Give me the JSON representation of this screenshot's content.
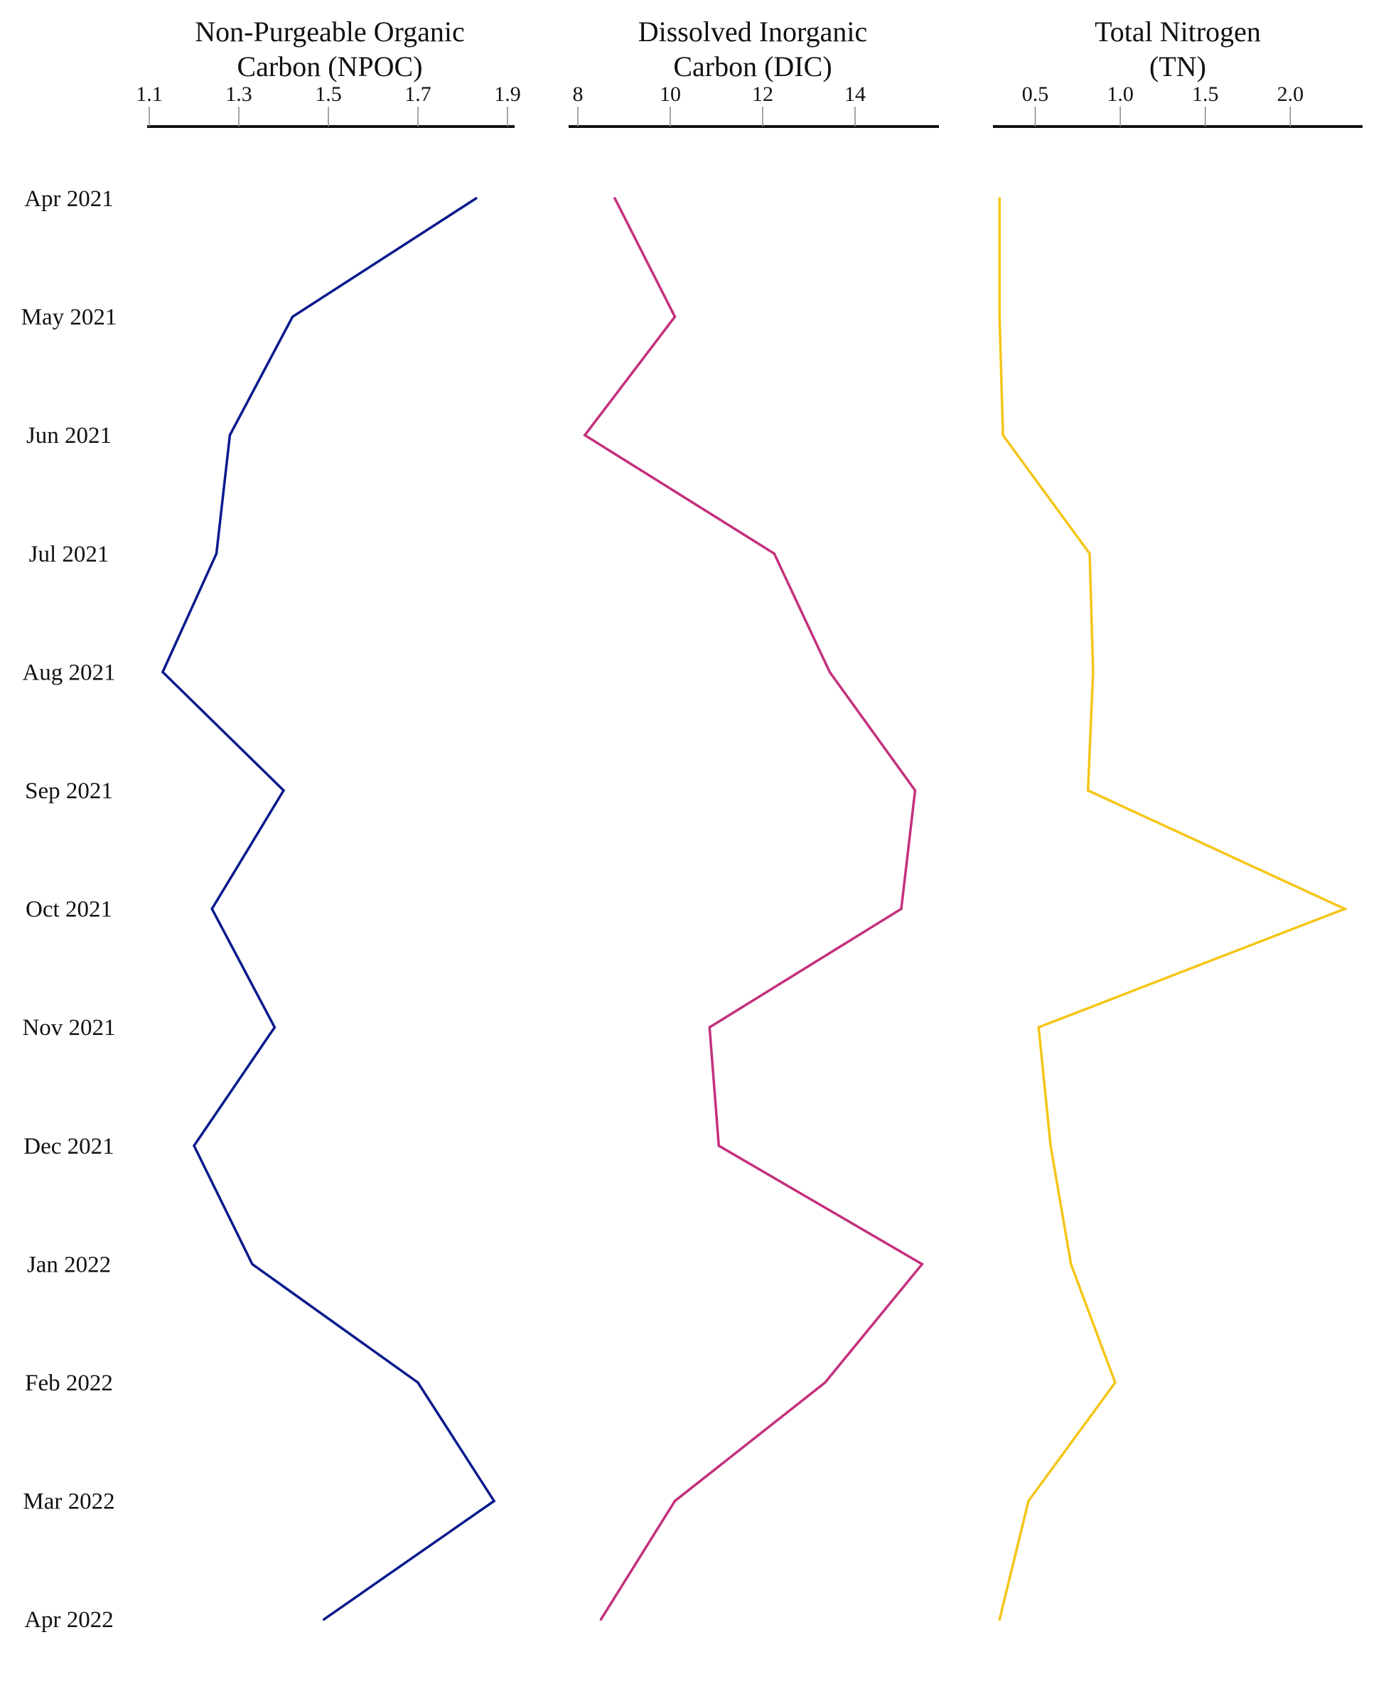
{
  "chart_data": {
    "type": "line",
    "orientation": "vertical-depth-profile",
    "dates": [
      "Apr 2021",
      "May 2021",
      "Jun 2021",
      "Jul 2021",
      "Aug 2021",
      "Sep 2021",
      "Oct 2021",
      "Nov 2021",
      "Dec 2021",
      "Jan 2022",
      "Feb 2022",
      "Mar 2022",
      "Apr 2022"
    ],
    "grid": false,
    "legend": "none",
    "panels": [
      {
        "title_lines": [
          "Non-Purgeable Organic",
          "Carbon (NPOC)"
        ],
        "xlim": [
          1.1,
          1.9
        ],
        "ticks": [
          1.1,
          1.3,
          1.5,
          1.7,
          1.9
        ],
        "tick_labels": [
          "1.1",
          "1.3",
          "1.5",
          "1.7",
          "1.9"
        ],
        "color": "#0a1a8c",
        "values": [
          1.83,
          1.42,
          1.28,
          1.25,
          1.13,
          1.4,
          1.24,
          1.38,
          1.2,
          1.33,
          1.7,
          1.87,
          1.49
        ]
      },
      {
        "title_lines": [
          "Dissolved Inorganic",
          "Carbon (DIC)"
        ],
        "xlim": [
          8,
          16
        ],
        "ticks": [
          8,
          10,
          12,
          14
        ],
        "tick_labels": [
          "8",
          "10",
          "12",
          "14"
        ],
        "color": "#c4307c",
        "values": [
          8.8,
          10.1,
          8.15,
          12.25,
          13.45,
          15.3,
          15.0,
          10.85,
          11.05,
          15.45,
          13.35,
          10.1,
          8.5
        ]
      },
      {
        "title_lines": [
          "Total Nitrogen",
          "(TN)"
        ],
        "xlim": [
          0.18,
          2.4
        ],
        "ticks": [
          0.5,
          1.0,
          1.5,
          2.0
        ],
        "tick_labels": [
          "0.5",
          "1.0",
          "1.5",
          "2.0"
        ],
        "color": "#f5c518",
        "values": [
          0.29,
          0.29,
          0.31,
          0.82,
          0.84,
          0.81,
          2.32,
          0.52,
          0.59,
          0.71,
          0.97,
          0.46,
          0.29
        ]
      }
    ]
  }
}
